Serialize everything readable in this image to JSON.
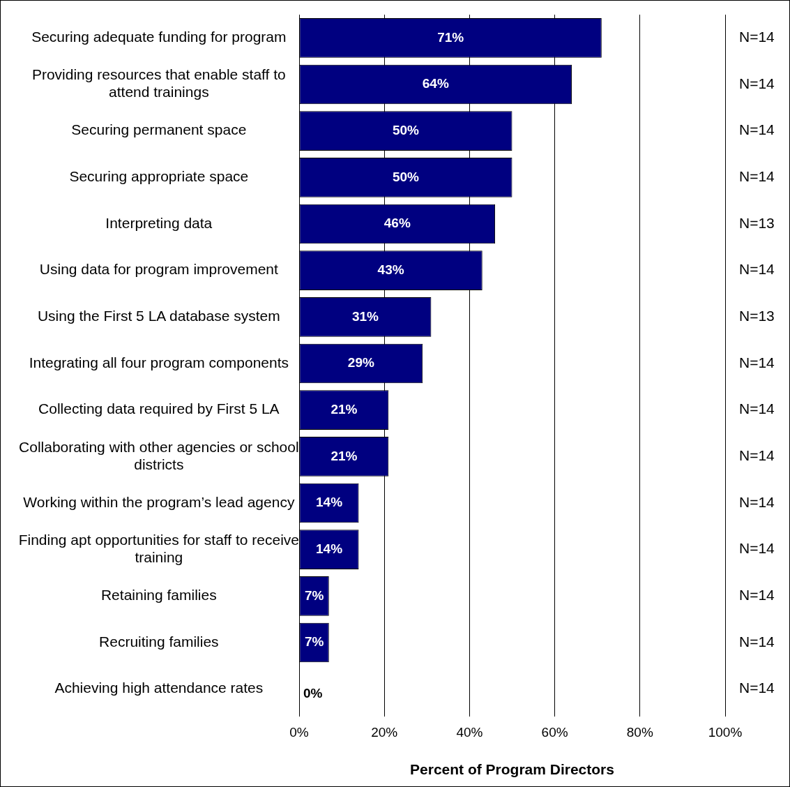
{
  "chart_data": {
    "type": "bar",
    "orientation": "horizontal",
    "xlabel": "Percent of Program Directors",
    "categories": [
      "Securing adequate funding for program",
      "Providing resources that enable staff to attend trainings",
      "Securing permanent space",
      "Securing appropriate space",
      "Interpreting data",
      "Using data for program improvement",
      "Using the First 5 LA database system",
      "Integrating all four program components",
      "Collecting data required by First 5 LA",
      "Collaborating with other agencies or school districts",
      "Working within the program’s lead agency",
      "Finding apt opportunities for staff to receive training",
      "Retaining families",
      "Recruiting families",
      "Achieving high attendance rates"
    ],
    "values": [
      71,
      64,
      50,
      50,
      46,
      43,
      31,
      29,
      21,
      21,
      14,
      14,
      7,
      7,
      0
    ],
    "value_labels": [
      "71%",
      "64%",
      "50%",
      "50%",
      "46%",
      "43%",
      "31%",
      "29%",
      "21%",
      "21%",
      "14%",
      "14%",
      "7%",
      "7%",
      "0%"
    ],
    "color": "#000080",
    "xlim": [
      0,
      100
    ],
    "xticks": [
      {
        "value": 0,
        "label": "0%"
      },
      {
        "value": 20,
        "label": "20%"
      },
      {
        "value": 40,
        "label": "40%"
      },
      {
        "value": 60,
        "label": "60%"
      },
      {
        "value": 80,
        "label": "80%"
      },
      {
        "value": 100,
        "label": "100%"
      }
    ],
    "grid": "x",
    "legend": false,
    "annotations": [
      "N=14",
      "N=14",
      "N=14",
      "N=14",
      "N=13",
      "N=14",
      "N=13",
      "N=14",
      "N=14",
      "N=14",
      "N=14",
      "N=14",
      "N=14",
      "N=14",
      "N=14"
    ]
  }
}
